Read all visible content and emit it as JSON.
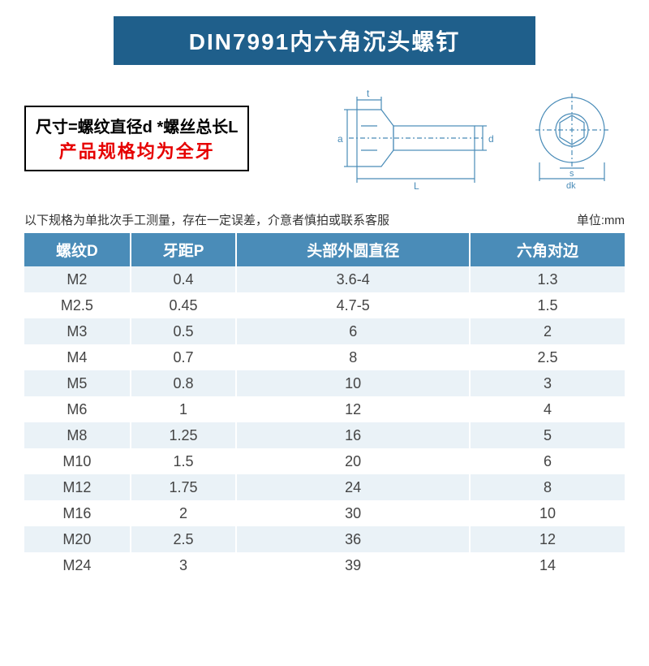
{
  "title": "DIN7991内六角沉头螺钉",
  "formula": {
    "line1": "尺寸=螺纹直径d *螺丝总长L",
    "line2": "产品规格均为全牙"
  },
  "diagram": {
    "stroke": "#4a8cb8",
    "labels": {
      "t": "t",
      "a": "a",
      "d": "d",
      "L": "L",
      "s": "s",
      "dk": "dk"
    }
  },
  "notes": {
    "left": "以下规格为单批次手工测量，存在一定误差，介意者慎拍或联系客服",
    "right": "单位:mm"
  },
  "table": {
    "headers": [
      "螺纹D",
      "牙距P",
      "头部外圆直径",
      "六角对边"
    ],
    "rows": [
      [
        "M2",
        "0.4",
        "3.6-4",
        "1.3"
      ],
      [
        "M2.5",
        "0.45",
        "4.7-5",
        "1.5"
      ],
      [
        "M3",
        "0.5",
        "6",
        "2"
      ],
      [
        "M4",
        "0.7",
        "8",
        "2.5"
      ],
      [
        "M5",
        "0.8",
        "10",
        "3"
      ],
      [
        "M6",
        "1",
        "12",
        "4"
      ],
      [
        "M8",
        "1.25",
        "16",
        "5"
      ],
      [
        "M10",
        "1.5",
        "20",
        "6"
      ],
      [
        "M12",
        "1.75",
        "24",
        "8"
      ],
      [
        "M16",
        "2",
        "30",
        "10"
      ],
      [
        "M20",
        "2.5",
        "36",
        "12"
      ],
      [
        "M24",
        "3",
        "39",
        "14"
      ]
    ],
    "header_bg": "#4a8cb8",
    "row_even_bg": "#eaf2f7",
    "row_odd_bg": "#ffffff"
  }
}
